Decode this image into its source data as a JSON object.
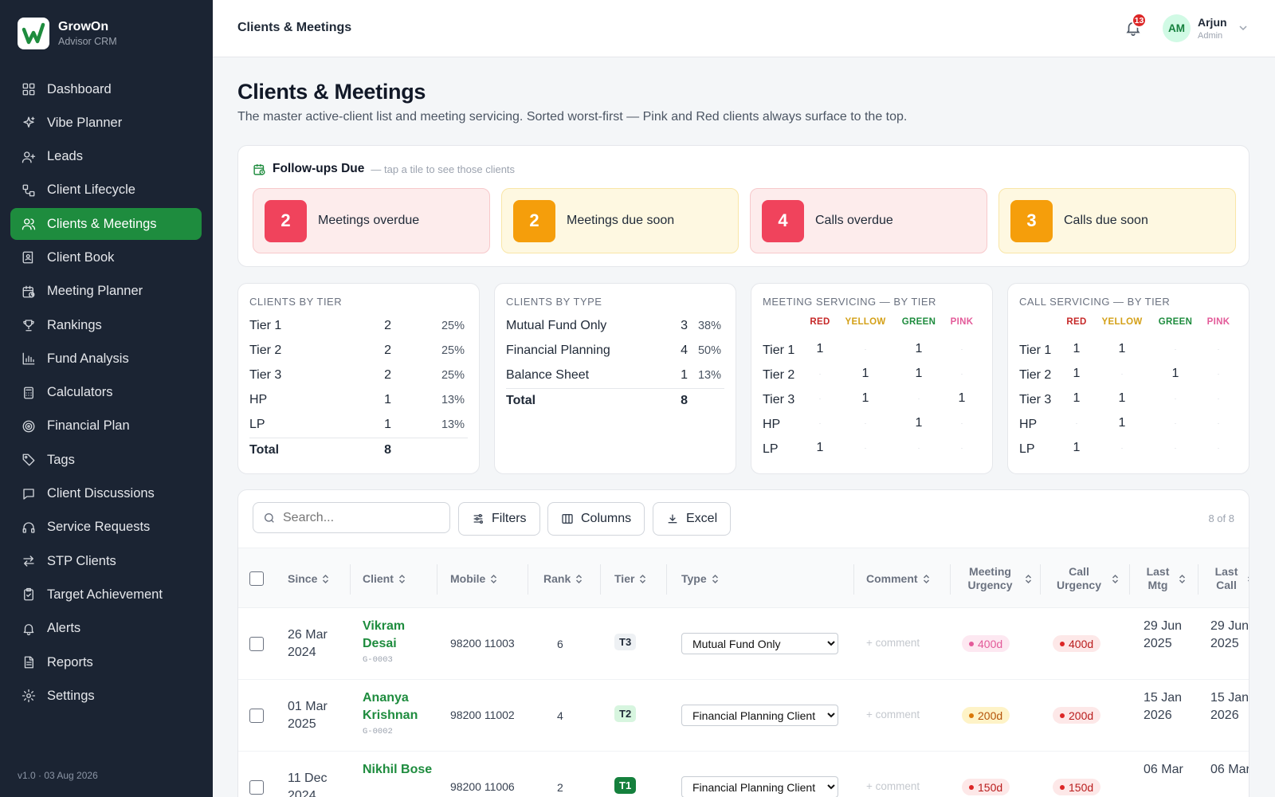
{
  "brand": {
    "name": "GrowOn",
    "sub": "Advisor CRM"
  },
  "nav": [
    {
      "label": "Dashboard",
      "icon": "grid-icon"
    },
    {
      "label": "Vibe Planner",
      "icon": "sparkle-icon"
    },
    {
      "label": "Leads",
      "icon": "user-plus-icon"
    },
    {
      "label": "Client Lifecycle",
      "icon": "workflow-icon"
    },
    {
      "label": "Clients & Meetings",
      "icon": "users-icon",
      "active": true
    },
    {
      "label": "Client Book",
      "icon": "book-icon"
    },
    {
      "label": "Meeting Planner",
      "icon": "calendar-clock-icon"
    },
    {
      "label": "Rankings",
      "icon": "trophy-icon"
    },
    {
      "label": "Fund Analysis",
      "icon": "bar-chart-icon"
    },
    {
      "label": "Calculators",
      "icon": "calculator-icon"
    },
    {
      "label": "Financial Plan",
      "icon": "target-icon"
    },
    {
      "label": "Tags",
      "icon": "tag-icon"
    },
    {
      "label": "Client Discussions",
      "icon": "message-icon"
    },
    {
      "label": "Service Requests",
      "icon": "headset-icon"
    },
    {
      "label": "STP Clients",
      "icon": "swap-icon"
    },
    {
      "label": "Target Achievement",
      "icon": "clipboard-check-icon"
    },
    {
      "label": "Alerts",
      "icon": "bell-icon"
    },
    {
      "label": "Reports",
      "icon": "file-icon"
    },
    {
      "label": "Settings",
      "icon": "gear-icon"
    }
  ],
  "version": "v1.0 · 03 Aug 2026",
  "topbar": {
    "title": "Clients & Meetings",
    "notifications": "13",
    "avatar": "AM",
    "user": "Arjun",
    "role": "Admin"
  },
  "page": {
    "title": "Clients & Meetings",
    "subtitle": "The master active-client list and meeting servicing. Sorted worst-first — Pink and Red clients always surface to the top."
  },
  "followups": {
    "title": "Follow-ups Due",
    "hint": "— tap a tile to see those clients",
    "tiles": [
      {
        "count": "2",
        "label": "Meetings overdue",
        "tone": "red"
      },
      {
        "count": "2",
        "label": "Meetings due soon",
        "tone": "amber"
      },
      {
        "count": "4",
        "label": "Calls overdue",
        "tone": "red"
      },
      {
        "count": "3",
        "label": "Calls due soon",
        "tone": "amber"
      }
    ]
  },
  "by_tier": {
    "title": "CLIENTS BY TIER",
    "rows": [
      {
        "label": "Tier 1",
        "count": "2",
        "pct": "25%"
      },
      {
        "label": "Tier 2",
        "count": "2",
        "pct": "25%"
      },
      {
        "label": "Tier 3",
        "count": "2",
        "pct": "25%"
      },
      {
        "label": "HP",
        "count": "1",
        "pct": "13%"
      },
      {
        "label": "LP",
        "count": "1",
        "pct": "13%"
      }
    ],
    "total_label": "Total",
    "total": "8"
  },
  "by_type": {
    "title": "CLIENTS BY TYPE",
    "rows": [
      {
        "label": "Mutual Fund Only",
        "count": "3",
        "pct": "38%"
      },
      {
        "label": "Financial Planning",
        "count": "4",
        "pct": "50%"
      },
      {
        "label": "Balance Sheet",
        "count": "1",
        "pct": "13%"
      }
    ],
    "total_label": "Total",
    "total": "8"
  },
  "colors": {
    "red": "#c62828",
    "yellow": "#d4a017",
    "green": "#1e8c3e",
    "pink": "#e35a99"
  },
  "meeting_servicing": {
    "title": "MEETING SERVICING — BY TIER",
    "columns": [
      "RED",
      "YELLOW",
      "GREEN",
      "PINK"
    ],
    "rows": [
      {
        "label": "Tier 1",
        "values": [
          "1",
          "·",
          "1",
          "·"
        ]
      },
      {
        "label": "Tier 2",
        "values": [
          "·",
          "1",
          "1",
          "·"
        ]
      },
      {
        "label": "Tier 3",
        "values": [
          "·",
          "1",
          "·",
          "1"
        ]
      },
      {
        "label": "HP",
        "values": [
          "·",
          "·",
          "1",
          "·"
        ]
      },
      {
        "label": "LP",
        "values": [
          "1",
          "·",
          "·",
          "·"
        ]
      }
    ]
  },
  "call_servicing": {
    "title": "CALL SERVICING — BY TIER",
    "columns": [
      "RED",
      "YELLOW",
      "GREEN",
      "PINK"
    ],
    "rows": [
      {
        "label": "Tier 1",
        "values": [
          "1",
          "1",
          "·",
          "·"
        ]
      },
      {
        "label": "Tier 2",
        "values": [
          "1",
          "·",
          "1",
          "·"
        ]
      },
      {
        "label": "Tier 3",
        "values": [
          "1",
          "1",
          "·",
          "·"
        ]
      },
      {
        "label": "HP",
        "values": [
          "·",
          "1",
          "·",
          "·"
        ]
      },
      {
        "label": "LP",
        "values": [
          "1",
          "·",
          "·",
          "·"
        ]
      }
    ]
  },
  "toolbar": {
    "search_placeholder": "Search...",
    "filters": "Filters",
    "columns": "Columns",
    "excel": "Excel",
    "count": "8 of 8"
  },
  "table": {
    "headers": {
      "since": "Since",
      "client": "Client",
      "mobile": "Mobile",
      "rank": "Rank",
      "tier": "Tier",
      "type": "Type",
      "comment": "Comment",
      "meeting_urgency": "Meeting Urgency",
      "call_urgency": "Call Urgency",
      "last_mtg": "Last Mtg",
      "last_call": "Last Call"
    },
    "rows": [
      {
        "since": "26 Mar 2024",
        "name": "Vikram Desai",
        "code": "G-0003",
        "mobile": "98200 11003",
        "rank": "6",
        "tier": "T3",
        "type": "Mutual Fund Only",
        "comment": "+ comment",
        "meeting_urgency": "400d",
        "meeting_tone": "pink",
        "call_urgency": "400d",
        "call_tone": "red",
        "last_mtg": "29 Jun 2025",
        "last_call": "29 Jun 2025"
      },
      {
        "since": "01 Mar 2025",
        "name": "Ananya Krishnan",
        "code": "G-0002",
        "mobile": "98200 11002",
        "rank": "4",
        "tier": "T2",
        "type": "Financial Planning Client",
        "comment": "+ comment",
        "meeting_urgency": "200d",
        "meeting_tone": "yellow",
        "call_urgency": "200d",
        "call_tone": "red",
        "last_mtg": "15 Jan 2026",
        "last_call": "15 Jan 2026"
      },
      {
        "since": "11 Dec 2024",
        "name": "Nikhil Bose",
        "code": "",
        "mobile": "98200 11006",
        "rank": "2",
        "tier": "T1",
        "type": "Financial Planning Client",
        "comment": "+ comment",
        "meeting_urgency": "150d",
        "meeting_tone": "red",
        "call_urgency": "150d",
        "call_tone": "red",
        "last_mtg": "06 Mar",
        "last_call": "06 Mar"
      }
    ],
    "type_options": [
      "Mutual Fund Only",
      "Financial Planning Client",
      "Balance Sheet"
    ]
  }
}
